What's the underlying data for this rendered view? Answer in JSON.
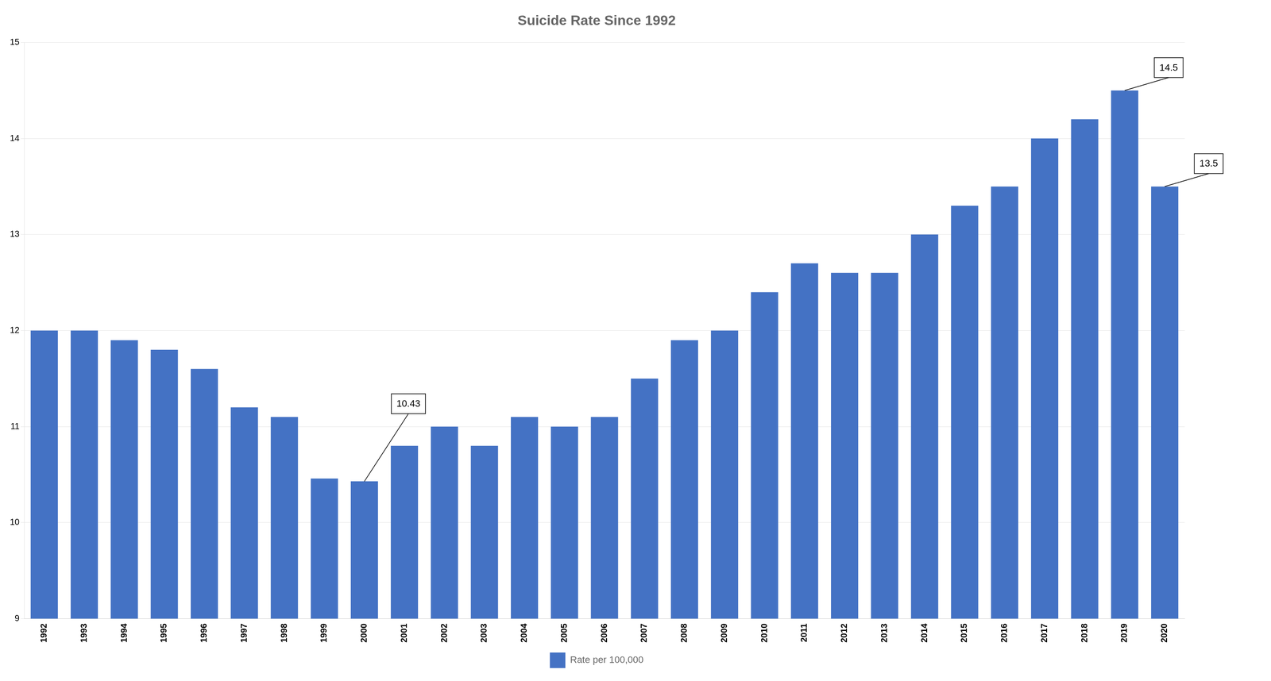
{
  "chart_data": {
    "type": "bar",
    "title": "Suicide Rate Since 1992",
    "categories": [
      "1992",
      "1993",
      "1994",
      "1995",
      "1996",
      "1997",
      "1998",
      "1999",
      "2000",
      "2001",
      "2002",
      "2003",
      "2004",
      "2005",
      "2006",
      "2007",
      "2008",
      "2009",
      "2010",
      "2011",
      "2012",
      "2013",
      "2014",
      "2015",
      "2016",
      "2017",
      "2018",
      "2019",
      "2020"
    ],
    "series": [
      {
        "name": "Rate per 100,000",
        "color": "#4472C4",
        "values": [
          12.0,
          12.0,
          11.9,
          11.8,
          11.6,
          11.2,
          11.1,
          10.46,
          10.43,
          10.8,
          11.0,
          10.8,
          11.1,
          11.0,
          11.1,
          11.5,
          11.9,
          12.0,
          12.4,
          12.7,
          12.6,
          12.6,
          13.0,
          13.3,
          13.5,
          14.0,
          14.2,
          14.5,
          13.5
        ]
      }
    ],
    "ylim": [
      9,
      15
    ],
    "yticks": [
      9,
      10,
      11,
      12,
      13,
      14,
      15
    ],
    "grid": true,
    "legend": "bottom",
    "annotations": [
      {
        "label": "10.43",
        "x": "2000",
        "y": 10.43
      },
      {
        "label": "14.5",
        "x": "2019",
        "y": 14.5
      },
      {
        "label": "13.5",
        "x": "2020",
        "y": 13.5
      }
    ]
  }
}
